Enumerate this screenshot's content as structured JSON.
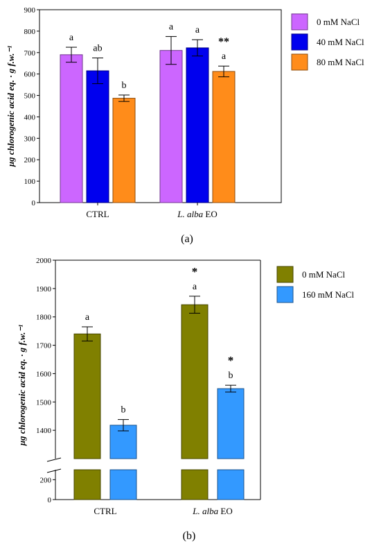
{
  "chart_data": [
    {
      "type": "bar",
      "panel_label": "(a)",
      "categories": [
        "CTRL",
        "L. alba EO"
      ],
      "category_parts": [
        [
          {
            "text": "CTRL",
            "italic": false
          }
        ],
        [
          {
            "text": "L. alba",
            "italic": true
          },
          {
            "text": " EO",
            "italic": false
          }
        ]
      ],
      "ylabel": "μg chlorogenic acid eq. · g f.w.⁻¹",
      "ylim": [
        0,
        900
      ],
      "yticks": [
        0,
        100,
        200,
        300,
        400,
        500,
        600,
        700,
        800,
        900
      ],
      "grid": false,
      "legend_position": "right",
      "series": [
        {
          "name": "0 mM NaCl",
          "color": "#cc66ff",
          "values": [
            690,
            710
          ],
          "errors": [
            35,
            65
          ],
          "labels": [
            "a",
            "a"
          ],
          "sig": [
            "",
            ""
          ]
        },
        {
          "name": "40 mM NaCl",
          "color": "#0000ee",
          "values": [
            615,
            722
          ],
          "errors": [
            60,
            38
          ],
          "labels": [
            "ab",
            "a"
          ],
          "sig": [
            "",
            ""
          ]
        },
        {
          "name": "80 mM NaCl",
          "color": "#ff8c1a",
          "values": [
            487,
            612
          ],
          "errors": [
            15,
            25
          ],
          "labels": [
            "b",
            "a"
          ],
          "sig": [
            "",
            "**"
          ]
        }
      ]
    },
    {
      "type": "bar",
      "panel_label": "(b)",
      "categories": [
        "CTRL",
        "L. alba EO"
      ],
      "category_parts": [
        [
          {
            "text": "CTRL",
            "italic": false
          }
        ],
        [
          {
            "text": "L. alba",
            "italic": true
          },
          {
            "text": " EO",
            "italic": false
          }
        ]
      ],
      "ylabel": "μg chlorogenic acid eq. · g f.w.⁻¹",
      "ylim_lower": [
        0,
        300
      ],
      "ylim_upper": [
        1300,
        2000
      ],
      "yticks_lower": [
        0,
        200
      ],
      "yticks_upper": [
        1400,
        1500,
        1600,
        1700,
        1800,
        1900,
        2000
      ],
      "axis_break": true,
      "grid": false,
      "legend_position": "right",
      "series": [
        {
          "name": "0 mM NaCl",
          "color": "#808000",
          "values": [
            1740,
            1843
          ],
          "errors": [
            25,
            30
          ],
          "labels": [
            "a",
            "a"
          ],
          "sig": [
            "",
            "*"
          ]
        },
        {
          "name": "160 mM NaCl",
          "color": "#3399ff",
          "values": [
            1418,
            1547
          ],
          "errors": [
            20,
            12
          ],
          "labels": [
            "b",
            "b"
          ],
          "sig": [
            "",
            "*"
          ]
        }
      ]
    }
  ]
}
